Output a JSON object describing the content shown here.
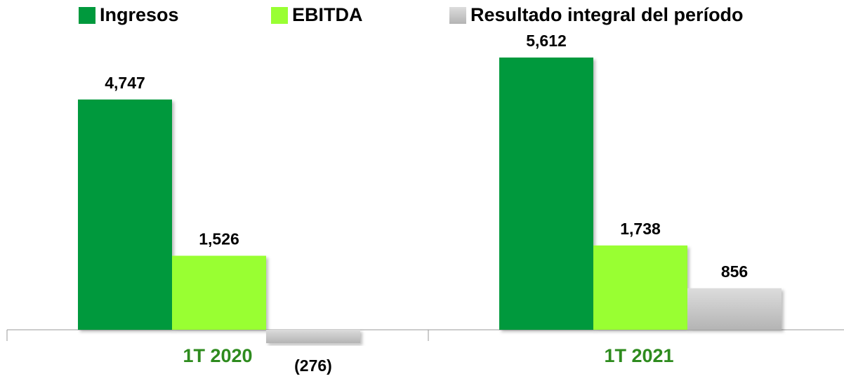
{
  "chart_data": {
    "type": "bar",
    "categories": [
      "1T 2020",
      "1T 2021"
    ],
    "series": [
      {
        "name": "Ingresos",
        "color": "#00993d",
        "values": [
          4747,
          5612
        ],
        "value_labels": [
          "4,747",
          "5,612"
        ]
      },
      {
        "name": "EBITDA",
        "color": "#99ff33",
        "values": [
          1526,
          1738
        ],
        "value_labels": [
          "1,526",
          "1,738"
        ]
      },
      {
        "name": "Resultado integral del período",
        "color": "#c9c9c9",
        "values": [
          -276,
          856
        ],
        "value_labels": [
          "(276)",
          "856"
        ]
      }
    ],
    "legend": "top"
  }
}
